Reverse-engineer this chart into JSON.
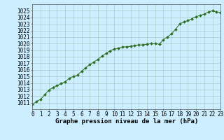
{
  "x": [
    0,
    0.5,
    1,
    1.5,
    2,
    2.5,
    3,
    3.5,
    4,
    4.5,
    5,
    5.5,
    6,
    6.5,
    7,
    7.5,
    8,
    8.5,
    9,
    9.5,
    10,
    10.5,
    11,
    11.5,
    12,
    12.5,
    13,
    13.5,
    14,
    14.5,
    15,
    15.5,
    16,
    16.5,
    17,
    17.5,
    18,
    18.5,
    19,
    19.5,
    20,
    20.5,
    21,
    21.5,
    22,
    22.5,
    23
  ],
  "y": [
    1010.7,
    1011.2,
    1011.5,
    1012.2,
    1012.9,
    1013.3,
    1013.6,
    1013.9,
    1014.2,
    1014.7,
    1015.0,
    1015.2,
    1015.8,
    1016.3,
    1016.8,
    1017.2,
    1017.6,
    1018.1,
    1018.5,
    1018.9,
    1019.2,
    1019.3,
    1019.5,
    1019.5,
    1019.6,
    1019.7,
    1019.8,
    1019.8,
    1019.9,
    1020.0,
    1020.0,
    1019.9,
    1020.6,
    1021.0,
    1021.5,
    1022.2,
    1023.0,
    1023.3,
    1023.5,
    1023.8,
    1024.1,
    1024.3,
    1024.5,
    1024.8,
    1025.0,
    1024.8,
    1024.7
  ],
  "line_color": "#2d6e1e",
  "marker_color": "#2d6e1e",
  "bg_color": "#cceeff",
  "grid_color": "#aacccc",
  "xlabel": "Graphe pression niveau de la mer (hPa)",
  "ylim": [
    1010,
    1026
  ],
  "xlim": [
    0,
    23
  ],
  "yticks": [
    1011,
    1012,
    1013,
    1014,
    1015,
    1016,
    1017,
    1018,
    1019,
    1020,
    1021,
    1022,
    1023,
    1024,
    1025
  ],
  "xticks": [
    0,
    1,
    2,
    3,
    4,
    5,
    6,
    7,
    8,
    9,
    10,
    11,
    12,
    13,
    14,
    15,
    16,
    17,
    18,
    19,
    20,
    21,
    22,
    23
  ],
  "xtick_labels": [
    "0",
    "1",
    "2",
    "3",
    "4",
    "5",
    "6",
    "7",
    "8",
    "9",
    "10",
    "11",
    "12",
    "13",
    "14",
    "15",
    "16",
    "17",
    "18",
    "19",
    "20",
    "21",
    "22",
    "23"
  ]
}
